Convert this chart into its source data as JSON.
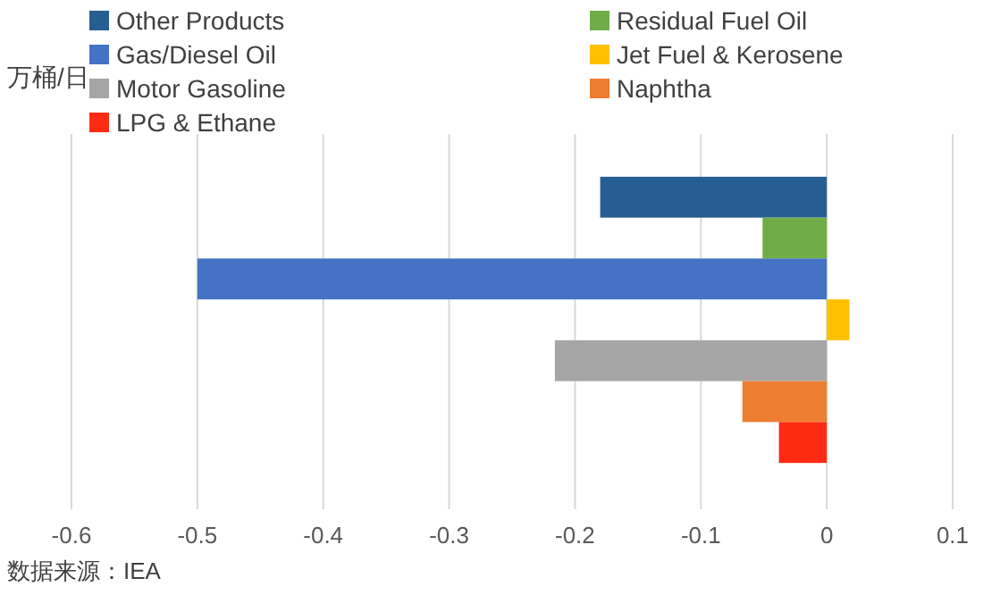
{
  "chart_data": {
    "type": "bar",
    "orientation": "horizontal",
    "ylabel": "万桶/日",
    "annotations": [
      "数据来源：IEA"
    ],
    "categories": [
      null
    ],
    "series": [
      {
        "name": "Other Products",
        "color": "#255e91",
        "values": [
          -0.18
        ]
      },
      {
        "name": "Residual Fuel Oil",
        "color": "#70ad47",
        "values": [
          -0.051
        ]
      },
      {
        "name": "Gas/Diesel Oil",
        "color": "#4472c4",
        "values": [
          -0.5
        ]
      },
      {
        "name": "Jet Fuel & Kerosene",
        "color": "#ffc000",
        "values": [
          0.018
        ]
      },
      {
        "name": "Motor Gasoline",
        "color": "#a5a5a5",
        "values": [
          -0.216
        ]
      },
      {
        "name": "Naphtha",
        "color": "#ed7d31",
        "values": [
          -0.067
        ]
      },
      {
        "name": "LPG & Ethane",
        "color": "#ff2a12",
        "values": [
          -0.038
        ]
      }
    ],
    "xlim": [
      -0.6,
      0.1
    ],
    "xticks": [
      -0.6,
      -0.5,
      -0.4,
      -0.3,
      -0.2,
      -0.1,
      0,
      0.1
    ],
    "grid": "x",
    "legend": "top",
    "tick_labels": "x"
  }
}
